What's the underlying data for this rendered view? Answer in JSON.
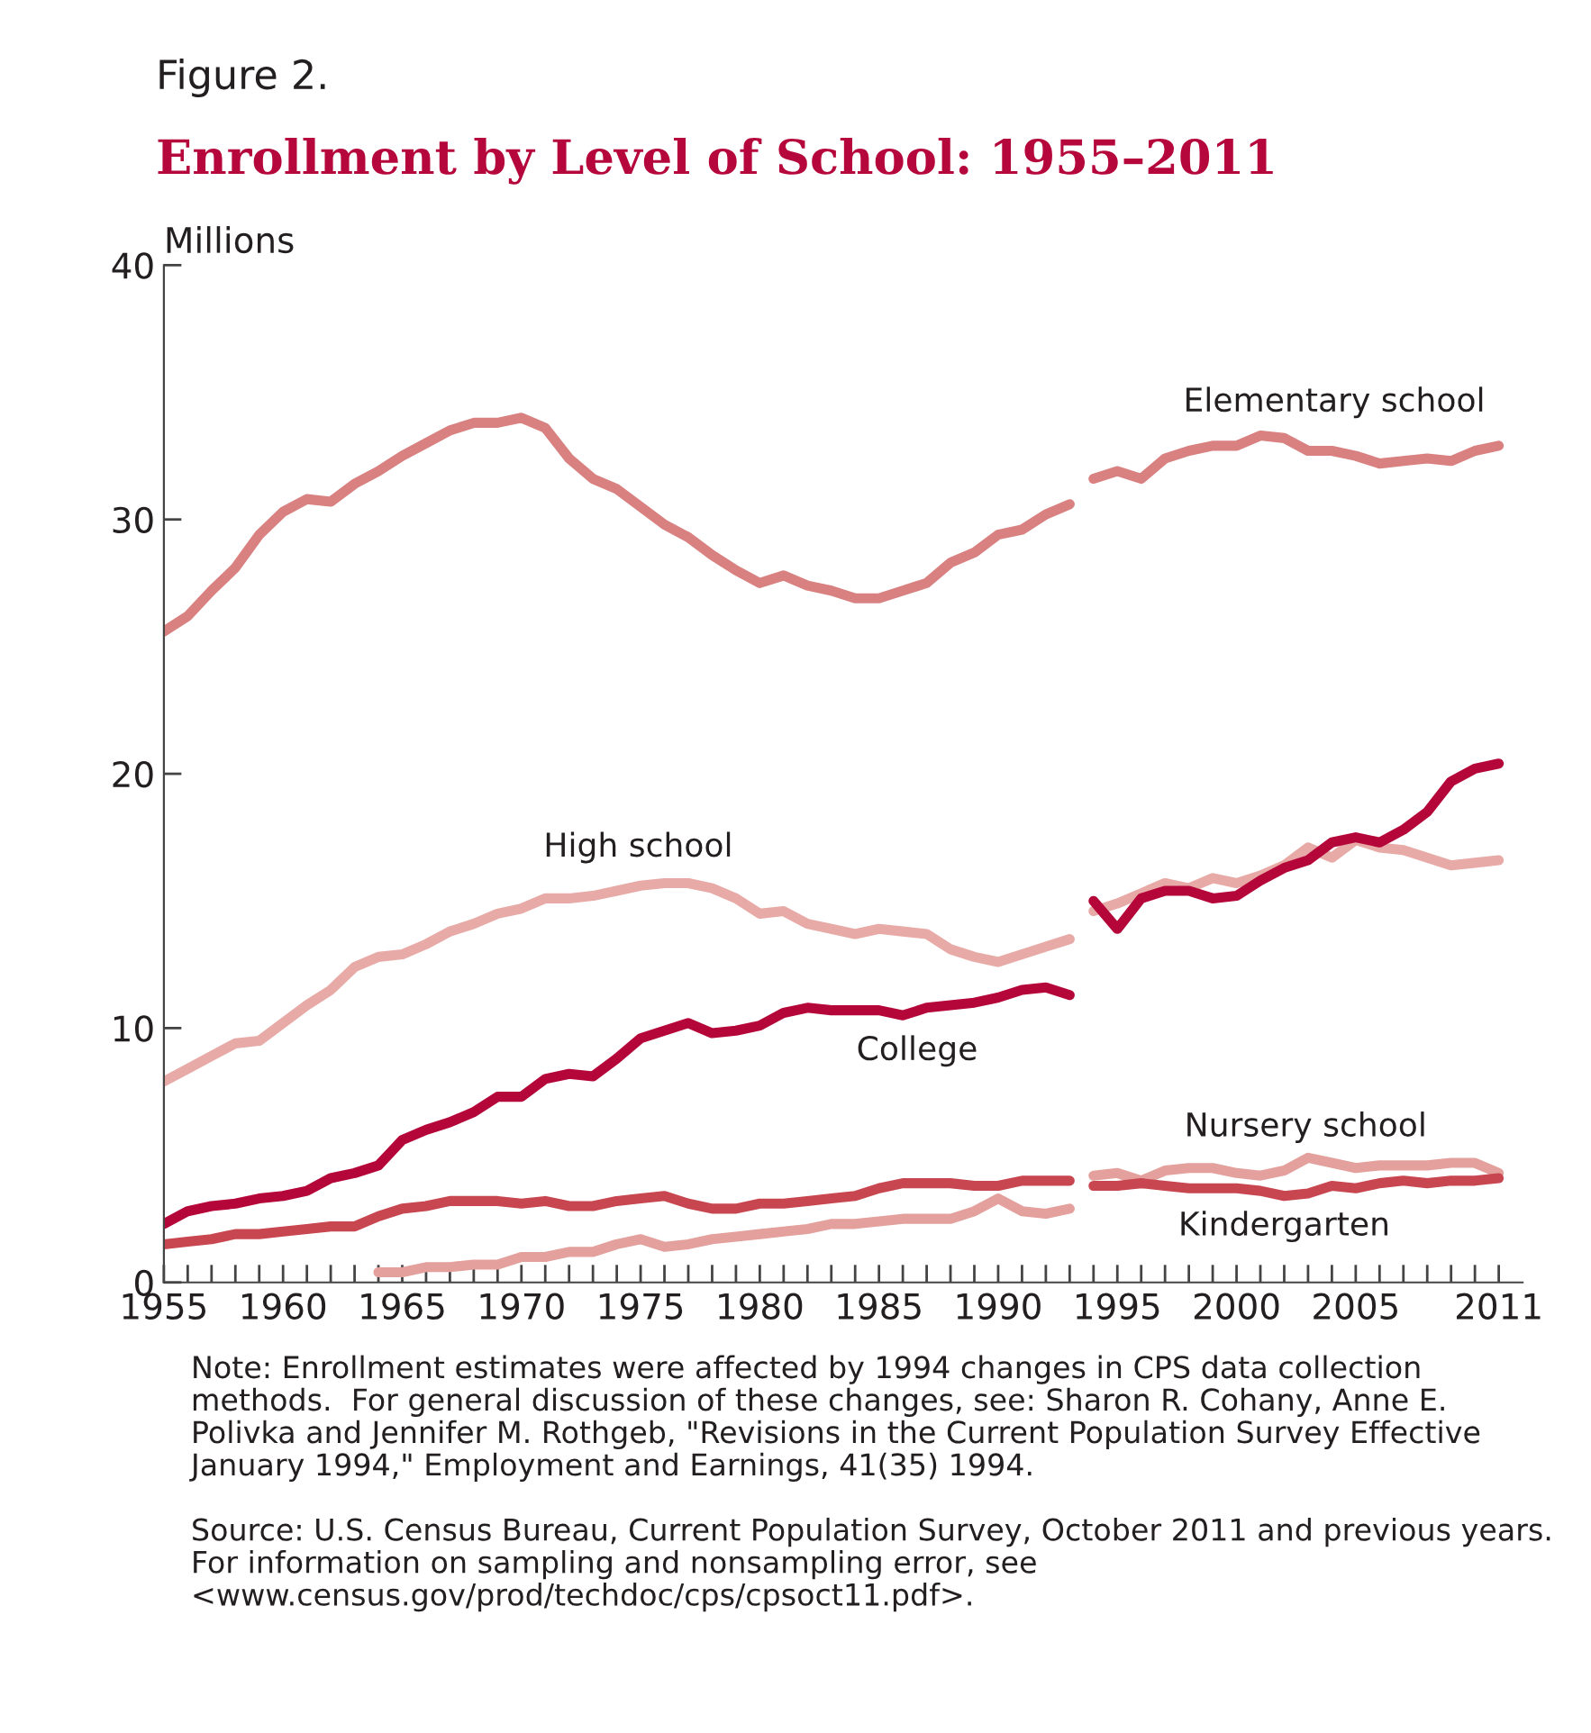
{
  "chart_data": {
    "type": "line",
    "subtitle": "Figure 2.",
    "title": "Enrollment by Level of School: 1955–2011",
    "ylabel": "Millions",
    "xlim": [
      1955,
      2012
    ],
    "xticks": [
      1955,
      {
        "value": 1956,
        "label": null
      },
      {
        "value": 1957,
        "label": null
      },
      {
        "value": 1958,
        "label": null
      },
      {
        "value": 1959,
        "label": null
      },
      1960,
      {
        "value": 1961,
        "label": null
      },
      {
        "value": 1962,
        "label": null
      },
      {
        "value": 1963,
        "label": null
      },
      {
        "value": 1964,
        "label": null
      },
      1965,
      {
        "value": 1966,
        "label": null
      },
      {
        "value": 1967,
        "label": null
      },
      {
        "value": 1968,
        "label": null
      },
      {
        "value": 1969,
        "label": null
      },
      1970,
      {
        "value": 1971,
        "label": null
      },
      {
        "value": 1972,
        "label": null
      },
      {
        "value": 1973,
        "label": null
      },
      {
        "value": 1974,
        "label": null
      },
      1975,
      {
        "value": 1976,
        "label": null
      },
      {
        "value": 1977,
        "label": null
      },
      {
        "value": 1978,
        "label": null
      },
      {
        "value": 1979,
        "label": null
      },
      1980,
      {
        "value": 1981,
        "label": null
      },
      {
        "value": 1982,
        "label": null
      },
      {
        "value": 1983,
        "label": null
      },
      {
        "value": 1984,
        "label": null
      },
      1985,
      {
        "value": 1986,
        "label": null
      },
      {
        "value": 1987,
        "label": null
      },
      {
        "value": 1988,
        "label": null
      },
      {
        "value": 1989,
        "label": null
      },
      1990,
      {
        "value": 1991,
        "label": null
      },
      {
        "value": 1992,
        "label": null
      },
      {
        "value": 1993,
        "label": null
      },
      {
        "value": 1994,
        "label": null
      },
      1995,
      {
        "value": 1996,
        "label": null
      },
      {
        "value": 1997,
        "label": null
      },
      {
        "value": 1998,
        "label": null
      },
      {
        "value": 1999,
        "label": null
      },
      2000,
      {
        "value": 2001,
        "label": null
      },
      {
        "value": 2002,
        "label": null
      },
      {
        "value": 2003,
        "label": null
      },
      {
        "value": 2004,
        "label": null
      },
      2005,
      {
        "value": 2006,
        "label": null
      },
      {
        "value": 2007,
        "label": null
      },
      {
        "value": 2008,
        "label": null
      },
      {
        "value": 2009,
        "label": null
      },
      {
        "value": 2010,
        "label": null
      },
      2011
    ],
    "ylim": [
      0,
      40
    ],
    "yticks": [
      0,
      10,
      20,
      30,
      40
    ],
    "grid": false,
    "legend": false,
    "marker": "none",
    "line_style": "solid",
    "series": [
      {
        "color": "#d98080",
        "x": [
          1955,
          1956,
          1957,
          1958,
          1959,
          1960,
          1961,
          1962,
          1963,
          1964,
          1965,
          1966,
          1967,
          1968,
          1969,
          1970,
          1971,
          1972,
          1973,
          1974,
          1975,
          1976,
          1977,
          1978,
          1979,
          1980,
          1981,
          1982,
          1983,
          1984,
          1985,
          1986,
          1987,
          1988,
          1989,
          1990,
          1991,
          1992,
          1993
        ],
        "values": [
          25.6,
          26.2,
          27.2,
          28.1,
          29.4,
          30.3,
          30.8,
          30.7,
          31.4,
          31.9,
          32.5,
          33.0,
          33.5,
          33.8,
          33.8,
          34.0,
          33.6,
          32.4,
          31.6,
          31.2,
          30.5,
          29.8,
          29.3,
          28.6,
          28.0,
          27.5,
          27.8,
          27.4,
          27.2,
          26.9,
          26.9,
          27.2,
          27.5,
          28.3,
          28.7,
          29.4,
          29.6,
          30.2,
          30.6
        ]
      },
      {
        "name": "High school",
        "color": "#e8aaa6",
        "x": [
          1955,
          1956,
          1957,
          1958,
          1959,
          1960,
          1961,
          1962,
          1963,
          1964,
          1965,
          1966,
          1967,
          1968,
          1969,
          1970,
          1971,
          1972,
          1973,
          1974,
          1975,
          1976,
          1977,
          1978,
          1979,
          1980,
          1981,
          1982,
          1983,
          1984,
          1985,
          1986,
          1987,
          1988,
          1989,
          1990,
          1991,
          1992,
          1993
        ],
        "values": [
          7.9,
          8.4,
          8.9,
          9.4,
          9.5,
          10.2,
          10.9,
          11.5,
          12.4,
          12.8,
          12.9,
          13.3,
          13.8,
          14.1,
          14.5,
          14.7,
          15.1,
          15.1,
          15.2,
          15.4,
          15.6,
          15.7,
          15.7,
          15.5,
          15.1,
          14.5,
          14.6,
          14.1,
          13.9,
          13.7,
          13.9,
          13.8,
          13.7,
          13.1,
          12.8,
          12.6,
          12.9,
          13.2,
          13.5
        ]
      },
      {
        "name": "College",
        "color": "#b5063a",
        "x": [
          1955,
          1956,
          1957,
          1958,
          1959,
          1960,
          1961,
          1962,
          1963,
          1964,
          1965,
          1966,
          1967,
          1968,
          1969,
          1970,
          1971,
          1972,
          1973,
          1974,
          1975,
          1976,
          1977,
          1978,
          1979,
          1980,
          1981,
          1982,
          1983,
          1984,
          1985,
          1986,
          1987,
          1988,
          1989,
          1990,
          1991,
          1992,
          1993
        ],
        "values": [
          2.3,
          2.8,
          3.0,
          3.1,
          3.3,
          3.4,
          3.6,
          4.1,
          4.3,
          4.6,
          5.6,
          6.0,
          6.3,
          6.7,
          7.3,
          7.3,
          8.0,
          8.2,
          8.1,
          8.8,
          9.6,
          9.9,
          10.2,
          9.8,
          9.9,
          10.1,
          10.6,
          10.8,
          10.7,
          10.7,
          10.7,
          10.5,
          10.8,
          10.9,
          11.0,
          11.2,
          11.5,
          11.6,
          11.3
        ]
      },
      {
        "color": "#e3a09c",
        "x": [
          1964,
          1965,
          1966,
          1967,
          1968,
          1969,
          1970,
          1971,
          1972,
          1973,
          1974,
          1975,
          1976,
          1977,
          1978,
          1979,
          1980,
          1981,
          1982,
          1983,
          1984,
          1985,
          1986,
          1987,
          1988,
          1989,
          1990,
          1991,
          1992,
          1993
        ],
        "values": [
          0.4,
          0.4,
          0.6,
          0.6,
          0.7,
          0.7,
          1.0,
          1.0,
          1.2,
          1.2,
          1.5,
          1.7,
          1.4,
          1.5,
          1.7,
          1.8,
          1.9,
          2.0,
          2.1,
          2.3,
          2.3,
          2.4,
          2.5,
          2.5,
          2.5,
          2.8,
          3.3,
          2.8,
          2.7,
          2.9
        ]
      },
      {
        "color": "#c8464f",
        "x": [
          1955,
          1956,
          1957,
          1958,
          1959,
          1960,
          1961,
          1962,
          1963,
          1964,
          1965,
          1966,
          1967,
          1968,
          1969,
          1970,
          1971,
          1972,
          1973,
          1974,
          1975,
          1976,
          1977,
          1978,
          1979,
          1980,
          1981,
          1982,
          1983,
          1984,
          1985,
          1986,
          1987,
          1988,
          1989,
          1990,
          1991,
          1992,
          1993
        ],
        "values": [
          1.5,
          1.6,
          1.7,
          1.9,
          1.9,
          2.0,
          2.1,
          2.2,
          2.2,
          2.6,
          2.9,
          3.0,
          3.2,
          3.2,
          3.2,
          3.1,
          3.2,
          3.0,
          3.0,
          3.2,
          3.3,
          3.4,
          3.1,
          2.9,
          2.9,
          3.1,
          3.1,
          3.2,
          3.3,
          3.4,
          3.7,
          3.9,
          3.9,
          3.9,
          3.8,
          3.8,
          4.0,
          4.0,
          4.0
        ]
      },
      {
        "name": "Elementary school",
        "color": "#d98080",
        "x": [
          1994,
          1995,
          1996,
          1997,
          1998,
          1999,
          2000,
          2001,
          2002,
          2003,
          2004,
          2005,
          2006,
          2007,
          2008,
          2009,
          2010,
          2011
        ],
        "values": [
          31.6,
          31.9,
          31.6,
          32.4,
          32.7,
          32.9,
          32.9,
          33.3,
          33.2,
          32.7,
          32.7,
          32.5,
          32.2,
          32.3,
          32.4,
          32.3,
          32.7,
          32.9
        ]
      },
      {
        "color": "#e8aaa6",
        "x": [
          1994,
          1995,
          1996,
          1997,
          1998,
          1999,
          2000,
          2001,
          2002,
          2003,
          2004,
          2005,
          2006,
          2007,
          2008,
          2009,
          2010,
          2011
        ],
        "values": [
          14.6,
          14.9,
          15.3,
          15.7,
          15.5,
          15.9,
          15.7,
          16.0,
          16.4,
          17.1,
          16.7,
          17.4,
          17.1,
          17.0,
          16.7,
          16.4,
          16.5,
          16.6
        ]
      },
      {
        "color": "#b5063a",
        "x": [
          1994,
          1995,
          1996,
          1997,
          1998,
          1999,
          2000,
          2001,
          2002,
          2003,
          2004,
          2005,
          2006,
          2007,
          2008,
          2009,
          2010,
          2011
        ],
        "values": [
          15.0,
          13.9,
          15.1,
          15.4,
          15.4,
          15.1,
          15.2,
          15.8,
          16.3,
          16.6,
          17.3,
          17.5,
          17.3,
          17.8,
          18.5,
          19.7,
          20.2,
          20.4
        ]
      },
      {
        "name": "Nursery school",
        "color": "#e3a09c",
        "x": [
          1994,
          1995,
          1996,
          1997,
          1998,
          1999,
          2000,
          2001,
          2002,
          2003,
          2004,
          2005,
          2006,
          2007,
          2008,
          2009,
          2010,
          2011
        ],
        "values": [
          4.2,
          4.3,
          4.0,
          4.4,
          4.5,
          4.5,
          4.3,
          4.2,
          4.4,
          4.9,
          4.7,
          4.5,
          4.6,
          4.6,
          4.6,
          4.7,
          4.7,
          4.3
        ]
      },
      {
        "name": "Kindergarten",
        "color": "#c8464f",
        "x": [
          1994,
          1995,
          1996,
          1997,
          1998,
          1999,
          2000,
          2001,
          2002,
          2003,
          2004,
          2005,
          2006,
          2007,
          2008,
          2009,
          2010,
          2011
        ],
        "values": [
          3.8,
          3.8,
          3.9,
          3.8,
          3.7,
          3.7,
          3.7,
          3.6,
          3.4,
          3.5,
          3.8,
          3.7,
          3.9,
          4.0,
          3.9,
          4.0,
          4.0,
          4.1
        ]
      }
    ],
    "annotations": [
      "Note: Enrollment estimates were affected by 1994 changes in CPS data collection\nmethods.  For general discussion of these changes, see: Sharon R. Cohany, Anne E.\nPolivka and Jennifer M. Rothgeb, \"Revisions in the Current Population Survey Effective\nJanuary 1994,\" Employment and Earnings, 41(35) 1994.",
      "Source: U.S. Census Bureau, Current Population Survey, October 2011 and previous years.\nFor information on sampling and nonsampling error, see\n<www.census.gov/prod/techdoc/cps/cpsoct11.pdf>."
    ]
  }
}
